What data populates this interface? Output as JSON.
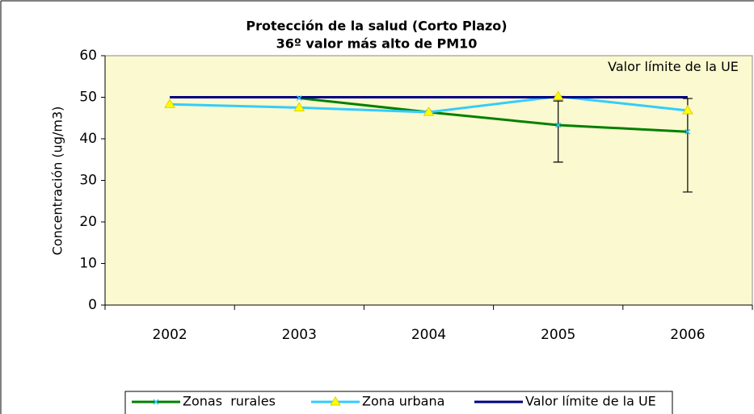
{
  "chart_data": {
    "type": "line",
    "title": "Protección de la salud (Corto Plazo)",
    "subtitle": "36º valor más alto de PM10",
    "y_label": "Concentración (ug/m3)",
    "annotation": "Valor límite de la UE",
    "categories": [
      "2002",
      "2003",
      "2004",
      "2005",
      "2006"
    ],
    "series": [
      {
        "name": "Zonas  rurales",
        "color": "#008000",
        "marker": "x",
        "values": [
          null,
          49.8,
          46.4,
          43.3,
          41.7
        ],
        "error_minus": [
          null,
          null,
          null,
          8.9,
          14.5
        ],
        "error_plus": [
          null,
          null,
          null,
          5.8,
          8.0
        ]
      },
      {
        "name": "Zona urbana",
        "color": "#33ccff",
        "marker": "triangle",
        "values": [
          48.3,
          47.5,
          46.4,
          50.2,
          46.8
        ]
      },
      {
        "name": "Valor límite de la UE",
        "color": "#000080",
        "marker": "none",
        "values": [
          50,
          50,
          50,
          50,
          50
        ]
      }
    ],
    "ylim": [
      0,
      60
    ],
    "yticks": [
      0,
      10,
      20,
      30,
      40,
      50,
      60
    ],
    "grid": false,
    "plot_background": "#fbf9cf",
    "legend": "bottom"
  }
}
